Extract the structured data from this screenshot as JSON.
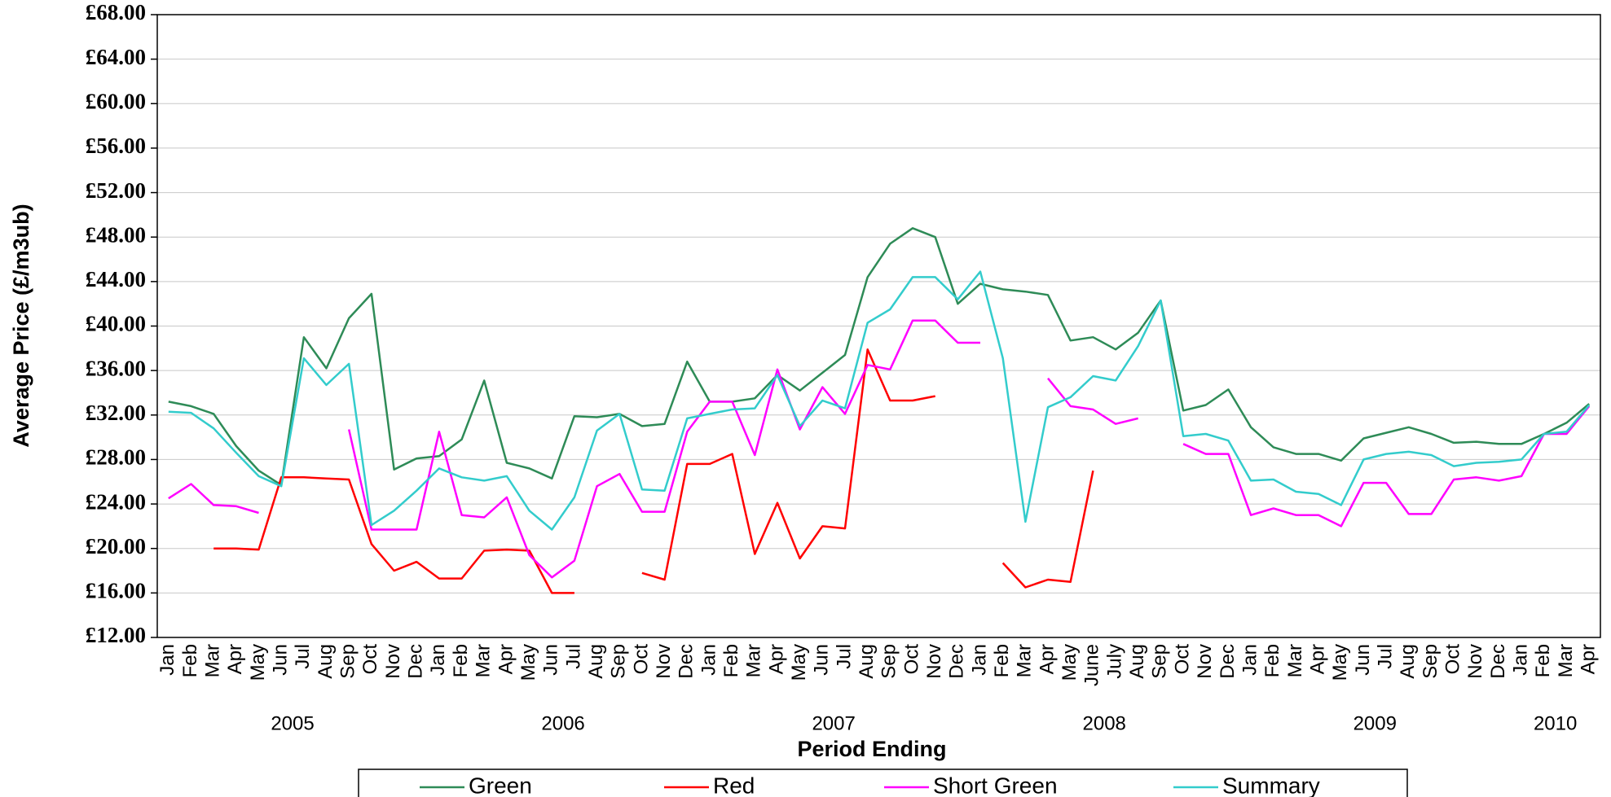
{
  "chart_data": {
    "type": "line",
    "x_label": "Period Ending",
    "y_label": "Average Price (£/m3ub)",
    "groups": [
      {
        "label": "2005",
        "categories": [
          "Jan",
          "Feb",
          "Mar",
          "Apr",
          "May",
          "Jun",
          "Jul",
          "Aug",
          "Sep",
          "Oct",
          "Nov",
          "Dec"
        ]
      },
      {
        "label": "2006",
        "categories": [
          "Jan",
          "Feb",
          "Mar",
          "Apr",
          "May",
          "Jun",
          "Jul",
          "Aug",
          "Sep",
          "Oct",
          "Nov",
          "Dec"
        ]
      },
      {
        "label": "2007",
        "categories": [
          "Jan",
          "Feb",
          "Mar",
          "Apr",
          "May",
          "Jun",
          "Jul",
          "Aug",
          "Sep",
          "Oct",
          "Nov",
          "Dec"
        ]
      },
      {
        "label": "2008",
        "categories": [
          "Jan",
          "Feb",
          "Mar",
          "Apr",
          "May",
          "June",
          "July",
          "Aug",
          "Sep",
          "Oct",
          "Nov",
          "Dec"
        ]
      },
      {
        "label": "2009",
        "categories": [
          "Jan",
          "Feb",
          "Mar",
          "Apr",
          "May",
          "Jun",
          "Jul",
          "Aug",
          "Sep",
          "Oct",
          "Nov",
          "Dec"
        ]
      },
      {
        "label": "2010",
        "categories": [
          "Jan",
          "Feb",
          "Mar",
          "Apr"
        ]
      }
    ],
    "series": [
      {
        "name": "Green",
        "color": "#2e8b57",
        "values": [
          33.2,
          32.8,
          32.1,
          29.2,
          27.0,
          25.7,
          39.0,
          36.2,
          40.7,
          42.9,
          27.1,
          28.1,
          28.3,
          29.8,
          35.1,
          27.7,
          27.2,
          26.3,
          31.9,
          31.8,
          32.1,
          31.0,
          31.2,
          36.8,
          33.2,
          33.2,
          33.5,
          35.6,
          34.2,
          35.8,
          37.4,
          44.4,
          47.4,
          48.8,
          48.0,
          42.0,
          43.8,
          43.3,
          43.1,
          42.8,
          38.7,
          39.0,
          37.9,
          39.4,
          42.3,
          32.4,
          32.9,
          34.3,
          30.9,
          29.1,
          28.5,
          28.5,
          27.9,
          29.9,
          30.4,
          30.9,
          30.3,
          29.5,
          29.6,
          29.4,
          29.4,
          30.3,
          31.3,
          33.0
        ]
      },
      {
        "name": "Red",
        "color": "#ff0000",
        "values": [
          null,
          null,
          20.0,
          20.0,
          19.9,
          26.4,
          26.4,
          26.3,
          26.2,
          20.4,
          18.0,
          18.8,
          17.3,
          17.3,
          19.8,
          19.9,
          19.8,
          16.0,
          16.0,
          null,
          null,
          17.8,
          17.2,
          27.6,
          27.6,
          28.5,
          19.5,
          24.1,
          19.1,
          22.0,
          21.8,
          37.9,
          33.3,
          33.3,
          33.7,
          null,
          null,
          18.7,
          16.5,
          17.2,
          17.0,
          27.0,
          null,
          null,
          null,
          null,
          null,
          null,
          null,
          null,
          null,
          null,
          null,
          null,
          null,
          null,
          null,
          null,
          null,
          null,
          null,
          null,
          null,
          null
        ]
      },
      {
        "name": "Short Green",
        "color": "#ff00ff",
        "values": [
          24.5,
          25.8,
          23.9,
          23.8,
          23.2,
          null,
          null,
          null,
          30.7,
          21.7,
          21.7,
          21.7,
          30.5,
          23.0,
          22.8,
          24.6,
          19.4,
          17.4,
          18.9,
          25.6,
          26.7,
          23.3,
          23.3,
          30.5,
          33.2,
          33.2,
          28.4,
          36.1,
          30.7,
          34.5,
          32.1,
          36.5,
          36.1,
          40.5,
          40.5,
          38.5,
          38.5,
          null,
          null,
          35.3,
          32.8,
          32.5,
          31.2,
          31.7,
          null,
          29.4,
          28.5,
          28.5,
          23.0,
          23.6,
          23.0,
          23.0,
          22.0,
          25.9,
          25.9,
          23.1,
          23.1,
          26.2,
          26.4,
          26.1,
          26.5,
          30.3,
          30.3,
          32.8
        ]
      },
      {
        "name": "Summary",
        "color": "#33cccc",
        "values": [
          32.3,
          32.2,
          30.8,
          28.6,
          26.5,
          25.6,
          37.1,
          34.7,
          36.6,
          22.1,
          23.4,
          25.2,
          27.2,
          26.4,
          26.1,
          26.5,
          23.4,
          21.7,
          24.6,
          30.6,
          32.1,
          25.3,
          25.2,
          31.7,
          32.1,
          32.5,
          32.6,
          35.6,
          31.0,
          33.3,
          32.6,
          40.3,
          41.5,
          44.4,
          44.4,
          42.4,
          44.9,
          37.1,
          22.4,
          32.7,
          33.6,
          35.5,
          35.1,
          38.2,
          42.3,
          30.1,
          30.3,
          29.7,
          26.1,
          26.2,
          25.1,
          24.9,
          23.9,
          28.0,
          28.5,
          28.7,
          28.4,
          27.4,
          27.7,
          27.8,
          28.0,
          30.3,
          30.5,
          32.9
        ]
      }
    ],
    "ylim": [
      12,
      68
    ],
    "yticks": [
      {
        "value": 12,
        "label": "£12.00"
      },
      {
        "value": 16,
        "label": "£16.00"
      },
      {
        "value": 20,
        "label": "£20.00"
      },
      {
        "value": 24,
        "label": "£24.00"
      },
      {
        "value": 28,
        "label": "£28.00"
      },
      {
        "value": 32,
        "label": "£32.00"
      },
      {
        "value": 36,
        "label": "£36.00"
      },
      {
        "value": 40,
        "label": "£40.00"
      },
      {
        "value": 44,
        "label": "£44.00"
      },
      {
        "value": 48,
        "label": "£48.00"
      },
      {
        "value": 52,
        "label": "£52.00"
      },
      {
        "value": 56,
        "label": "£56.00"
      },
      {
        "value": 60,
        "label": "£60.00"
      },
      {
        "value": 64,
        "label": "£64.00"
      },
      {
        "value": 68,
        "label": "£68.00"
      }
    ],
    "grid": true,
    "legend": "bottom"
  }
}
